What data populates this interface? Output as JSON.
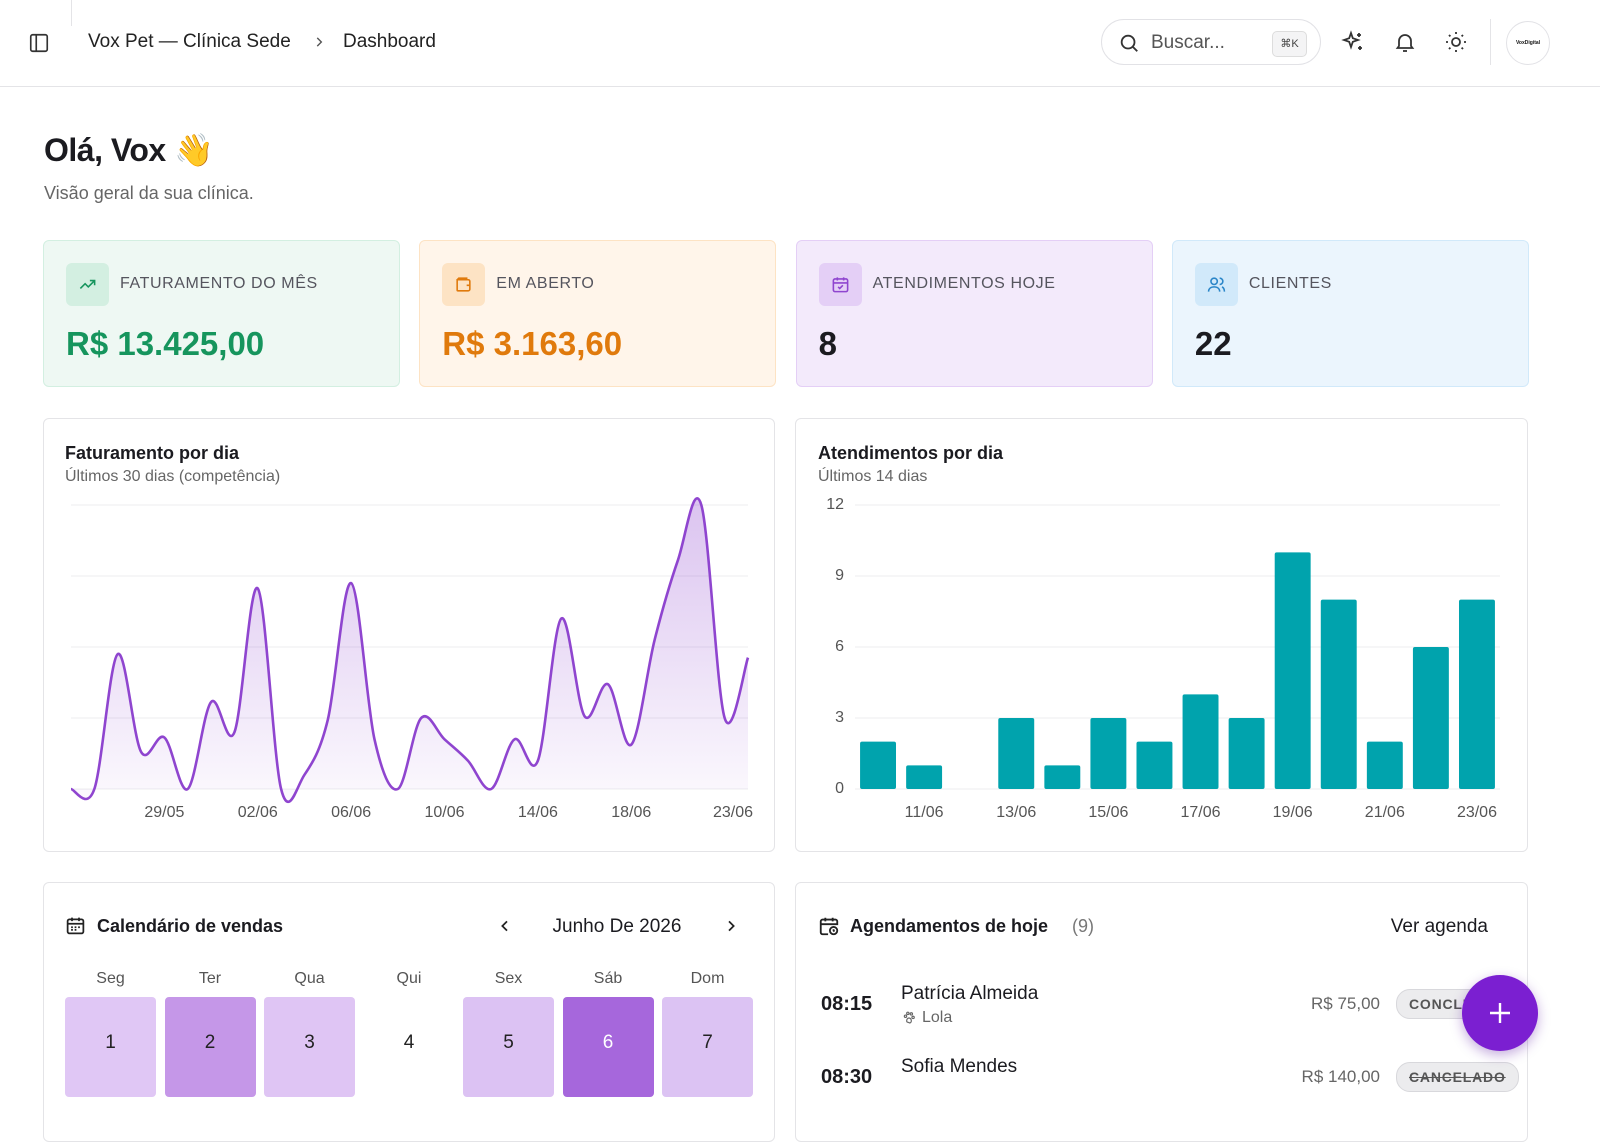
{
  "header": {
    "breadcrumb": [
      "Vox Pet — Clínica Sede",
      "Dashboard"
    ],
    "search_placeholder": "Buscar...",
    "shortcut": "⌘K",
    "avatar": "VoxDigital"
  },
  "greeting": {
    "title": "Olá, Vox 👋",
    "subtitle": "Visão geral da sua clínica."
  },
  "stats": [
    {
      "label": "FATURAMENTO DO MÊS",
      "value": "R$ 13.425,00",
      "color": "#16955d",
      "bg": "#eef8f3",
      "icon_bg": "#d3efe1"
    },
    {
      "label": "EM ABERTO",
      "value": "R$ 3.163,60",
      "color": "#e07a0c",
      "bg": "#fff5ea",
      "icon_bg": "#fde3c4"
    },
    {
      "label": "ATENDIMENTOS HOJE",
      "value": "8",
      "color": "#1b1b20",
      "bg": "#f3eafb",
      "icon_bg": "#e4cff6"
    },
    {
      "label": "CLIENTES",
      "value": "22",
      "color": "#1b1b20",
      "bg": "#ebf5fd",
      "icon_bg": "#d1e9fa"
    }
  ],
  "chart_data": [
    {
      "type": "line",
      "title": "Faturamento por dia",
      "subtitle": "Últimos 30 dias (competência)",
      "categories": [
        null,
        null,
        null,
        null,
        "29/05",
        null,
        null,
        null,
        "02/06",
        null,
        null,
        null,
        "06/06",
        null,
        null,
        null,
        "10/06",
        null,
        null,
        null,
        "14/06",
        null,
        null,
        null,
        "18/06",
        null,
        null,
        null,
        null,
        "23/06"
      ],
      "values": [
        0,
        0,
        760,
        210,
        290,
        0,
        490,
        320,
        1130,
        0,
        80,
        390,
        1160,
        280,
        0,
        400,
        280,
        160,
        0,
        280,
        160,
        960,
        410,
        590,
        250,
        840,
        1290,
        1600,
        400,
        740
      ],
      "color": "#8f45cf",
      "ylim": [
        0,
        1600
      ],
      "yticks": [
        0,
        400,
        800,
        1200,
        1600
      ],
      "grid": true,
      "show_ytick_labels": false
    },
    {
      "type": "bar",
      "title": "Atendimentos por dia",
      "subtitle": "Últimos 14 dias",
      "categories": [
        null,
        "11/06",
        null,
        "13/06",
        null,
        "15/06",
        null,
        "17/06",
        null,
        "19/06",
        null,
        "21/06",
        null,
        "23/06"
      ],
      "values": [
        2,
        1,
        0,
        3,
        1,
        3,
        2,
        4,
        3,
        10,
        8,
        2,
        6,
        8
      ],
      "color": "#00a3ad",
      "ylim": [
        0,
        12
      ],
      "yticks": [
        0,
        3,
        6,
        9,
        12
      ],
      "grid": true,
      "show_ytick_labels": true
    }
  ],
  "calendar": {
    "title": "Calendário de vendas",
    "month": "Junho De 2026",
    "weekdays": [
      "Seg",
      "Ter",
      "Qua",
      "Qui",
      "Sex",
      "Sáb",
      "Dom"
    ],
    "days": [
      {
        "day": 1,
        "color": "#e0c7f5"
      },
      {
        "day": 2,
        "color": "#c597e8"
      },
      {
        "day": 3,
        "color": "#dfc5f4"
      },
      {
        "day": 4,
        "color": "#ffffff"
      },
      {
        "day": 5,
        "color": "#dcc2f3"
      },
      {
        "day": 6,
        "color": "#a667dc"
      },
      {
        "day": 7,
        "color": "#dcc3f3"
      }
    ]
  },
  "agenda": {
    "title": "Agendamentos de hoje",
    "count": "(9)",
    "link": "Ver agenda",
    "items": [
      {
        "time": "08:15",
        "name": "Patrícia Almeida",
        "pet": "Lola",
        "price": "R$ 75,00",
        "status": "CONCLUÍDO"
      },
      {
        "time": "08:30",
        "name": "Sofia Mendes",
        "price": "R$ 140,00",
        "status": "CANCELADO"
      }
    ]
  }
}
